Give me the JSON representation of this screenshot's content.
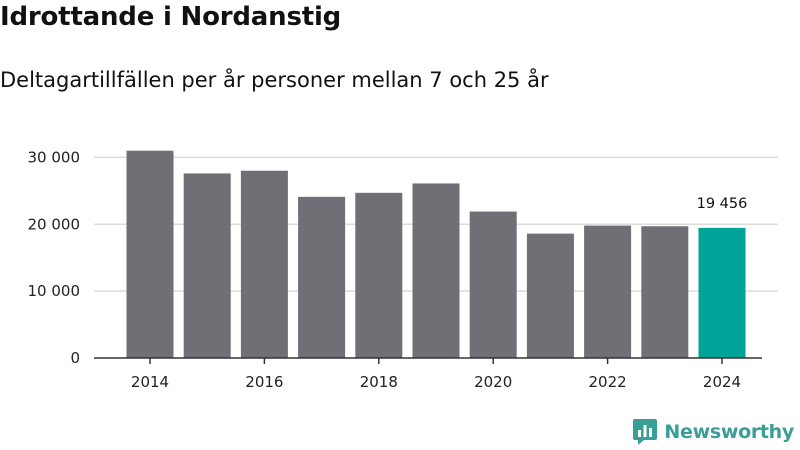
{
  "colors": {
    "bar": "#706f75",
    "highlight": "#00a398",
    "grid": "#dcdcdc",
    "axis": "#333333",
    "brand": "#3a9e98"
  },
  "brand": {
    "name": "Newsworthy",
    "icon": "newsworthy-logo-icon"
  },
  "chart_data": {
    "type": "bar",
    "title": "Idrottande i Nordanstig",
    "subtitle": "Deltagartillfällen per år personer mellan 7 och 25 år",
    "xlabel": "",
    "ylabel": "",
    "categories": [
      "2014",
      "2015",
      "2016",
      "2017",
      "2018",
      "2019",
      "2020",
      "2021",
      "2022",
      "2023",
      "2024"
    ],
    "values": [
      31000,
      27600,
      28000,
      24100,
      24700,
      26100,
      21900,
      18600,
      19800,
      19700,
      19456
    ],
    "highlight_index": 10,
    "ylim": [
      0,
      32000
    ],
    "yticks": [
      0,
      10000,
      20000,
      30000
    ],
    "ytick_labels": [
      "0",
      "10 000",
      "20 000",
      "30 000"
    ],
    "xtick_labels": [
      "2014",
      "2016",
      "2018",
      "2020",
      "2022",
      "2024"
    ],
    "annotations": [
      {
        "category": "2024",
        "text": "19 456"
      }
    ],
    "grid": true,
    "legend": "none"
  }
}
